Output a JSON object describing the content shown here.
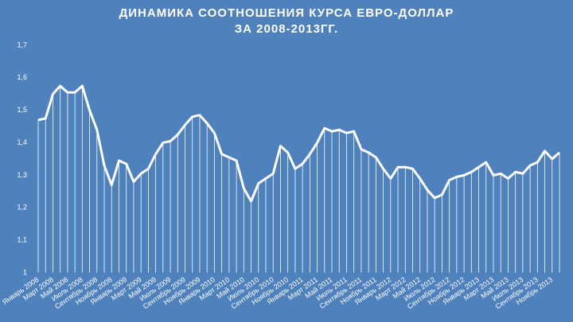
{
  "chart_data": {
    "type": "line",
    "title": "ДИНАМИКА СООТНОШЕНИЯ КУРСА ЕВРО-ДОЛЛАР",
    "subtitle": "ЗА 2008-2013ГГ.",
    "categories": [
      "Январь 2008",
      null,
      "Март 2008",
      null,
      "Май 2008",
      null,
      "Июль 2008",
      null,
      "Сентябрь 2008",
      null,
      "Ноябрь 2008",
      null,
      "Январь 2009",
      null,
      "Март 2009",
      null,
      "Май 2009",
      null,
      "Июль 2009",
      null,
      "Сентябрь 2009",
      null,
      "Ноябрь 2009",
      null,
      "Январь 2010",
      null,
      "Март 2010",
      null,
      "Май 2010",
      null,
      "Июль 2010",
      null,
      "Сентябрь 2010",
      null,
      "Ноябрь 2010",
      null,
      "Январь 2011",
      null,
      "Март 2011",
      null,
      "Май 2011",
      null,
      "Июль 2011",
      null,
      "Сентябрь 2011",
      null,
      "Ноябрь 2011",
      null,
      "Январь 2012",
      null,
      "Март 2012",
      null,
      "Май 2012",
      null,
      "Июль 2012",
      null,
      "Сентябрь 2012",
      null,
      "Ноябрь 2012",
      null,
      "Январь 2013",
      null,
      "Март 2013",
      null,
      "Май 2013",
      null,
      "Июль 2013",
      null,
      "Сентябрь 2013",
      null,
      "Ноябрь 2013",
      null
    ],
    "values": [
      1.47,
      1.475,
      1.55,
      1.575,
      1.555,
      1.555,
      1.575,
      1.5,
      1.44,
      1.33,
      1.27,
      1.345,
      1.335,
      1.28,
      1.305,
      1.32,
      1.365,
      1.4,
      1.405,
      1.425,
      1.455,
      1.48,
      1.485,
      1.46,
      1.43,
      1.365,
      1.355,
      1.345,
      1.26,
      1.22,
      1.275,
      1.29,
      1.305,
      1.39,
      1.37,
      1.32,
      1.335,
      1.365,
      1.4,
      1.445,
      1.435,
      1.44,
      1.43,
      1.435,
      1.38,
      1.37,
      1.355,
      1.32,
      1.29,
      1.325,
      1.325,
      1.32,
      1.29,
      1.255,
      1.23,
      1.24,
      1.285,
      1.295,
      1.3,
      1.31,
      1.325,
      1.34,
      1.3,
      1.305,
      1.29,
      1.31,
      1.305,
      1.33,
      1.34,
      1.375,
      1.35,
      1.37
    ],
    "color": "#ffffff",
    "ylim": [
      1,
      1.7
    ],
    "yticks": [
      1,
      {
        "value": 1.1,
        "label": "1,1"
      },
      {
        "value": 1.2,
        "label": "1,2"
      },
      {
        "value": 1.3,
        "label": "1,3"
      },
      {
        "value": 1.4,
        "label": "1,4"
      },
      {
        "value": 1.5,
        "label": "1,5"
      },
      {
        "value": 1.6,
        "label": "1,6"
      },
      {
        "value": 1.7,
        "label": "1,7"
      }
    ],
    "grid": false,
    "drop_lines": true
  }
}
